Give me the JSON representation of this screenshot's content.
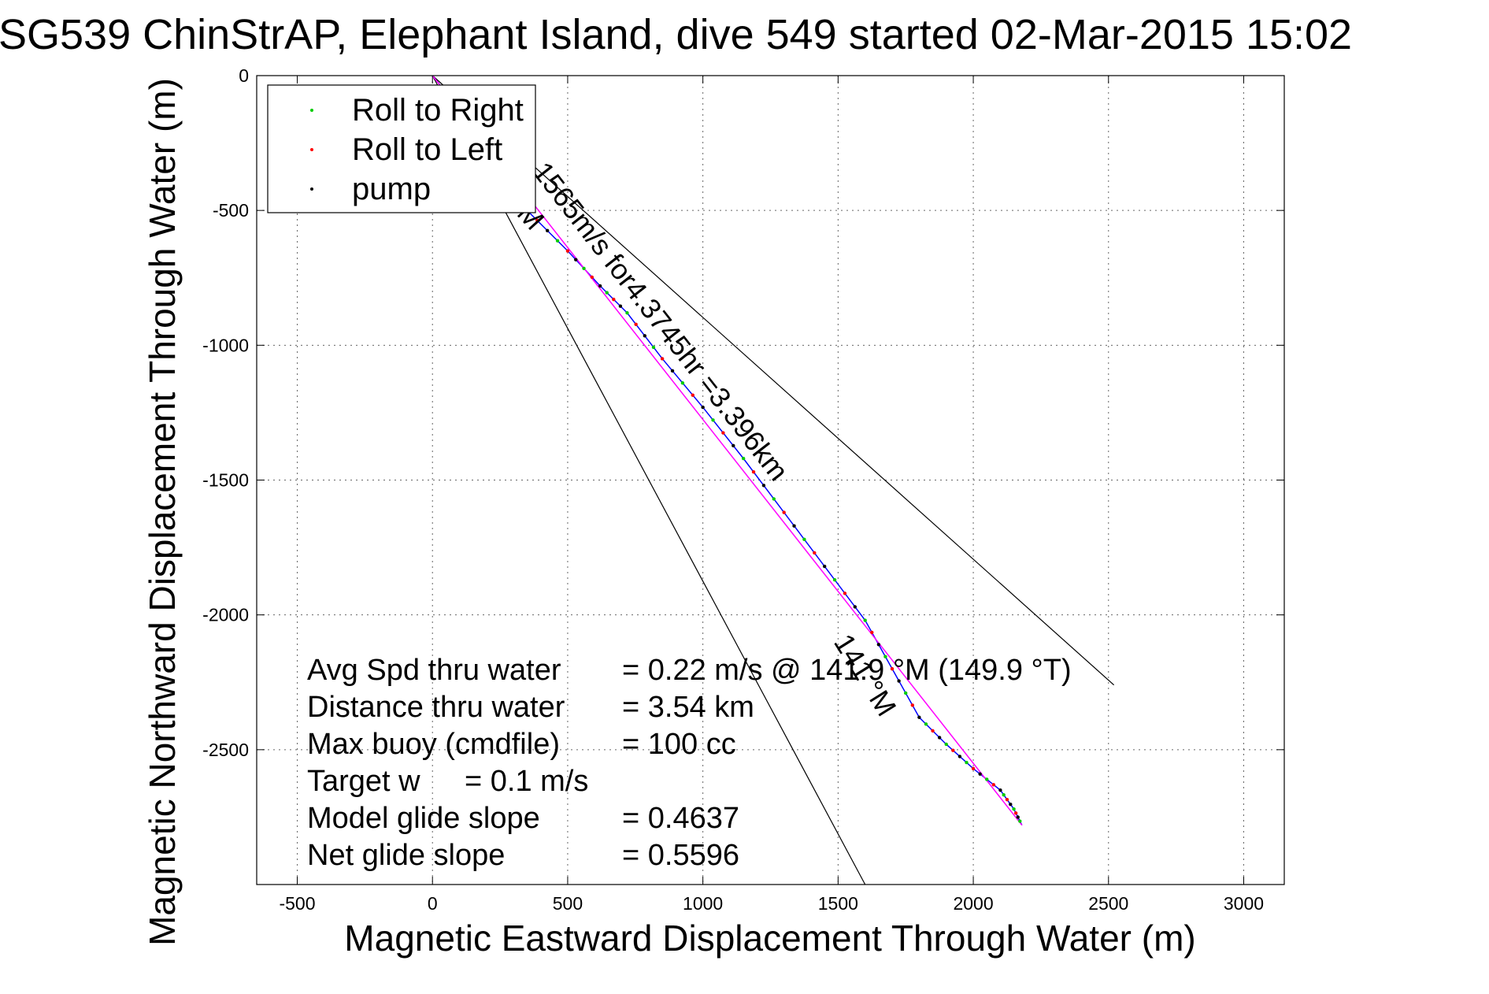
{
  "chart_data": {
    "type": "line",
    "title": "SG539 ChinStrAP, Elephant Island, dive 549 started 02-Mar-2015 15:02",
    "xlabel": "Magnetic Eastward Displacement Through Water (m)",
    "ylabel": "Magnetic Northward Displacement Through Water (m)",
    "xlim": [
      -650,
      3150
    ],
    "ylim": [
      -3000,
      0
    ],
    "xticks": [
      -500,
      0,
      500,
      1000,
      1500,
      2000,
      2500,
      3000
    ],
    "yticks": [
      0,
      -500,
      -1000,
      -1500,
      -2000,
      -2500
    ],
    "grid": true,
    "legend_position": "top-left",
    "legend": [
      {
        "label": "Roll to Right",
        "color": "#00cc00"
      },
      {
        "label": "Roll to Left",
        "color": "#ff0000"
      },
      {
        "label": "pump",
        "color": "#000000"
      }
    ],
    "series": [
      {
        "color": "#0000ff",
        "x": [
          0,
          80,
          200,
          350,
          500,
          620,
          720,
          850,
          1000,
          1150,
          1300,
          1450,
          1600,
          1700,
          1800,
          1900,
          2000,
          2100,
          2150,
          2180
        ],
        "y": [
          0,
          -100,
          -300,
          -500,
          -650,
          -780,
          -880,
          -1050,
          -1230,
          -1420,
          -1620,
          -1820,
          -2020,
          -2200,
          -2380,
          -2480,
          -2570,
          -2650,
          -2720,
          -2780
        ]
      },
      {
        "color": "#ff00ff",
        "x": [
          0,
          2180
        ],
        "y": [
          0,
          -2780
        ]
      }
    ],
    "bearing_lines": [
      {
        "color": "#000000",
        "x": [
          0,
          2520
        ],
        "y": [
          0,
          -2260
        ]
      },
      {
        "color": "#000000",
        "x": [
          0,
          1600
        ],
        "y": [
          0,
          -3000
        ]
      }
    ],
    "annotations": {
      "track": "1565m/s for4.3745hr =3.396km",
      "bearing_upper": "M",
      "bearing_lower": "141 °M"
    },
    "stats": [
      {
        "label": "Avg Spd thru water",
        "value": "=  0.22 m/s @ 141.9 °M (149.9 °T)"
      },
      {
        "label": "Distance thru water",
        "value": "=  3.54 km"
      },
      {
        "label": "Max buoy (cmdfile)",
        "value": "= 100 cc"
      },
      {
        "label": "Target w",
        "value": "= 0.1 m/s"
      },
      {
        "label": "Model glide slope",
        "value": "= 0.4637"
      },
      {
        "label": "Net glide slope",
        "value": "= 0.5596"
      }
    ]
  }
}
